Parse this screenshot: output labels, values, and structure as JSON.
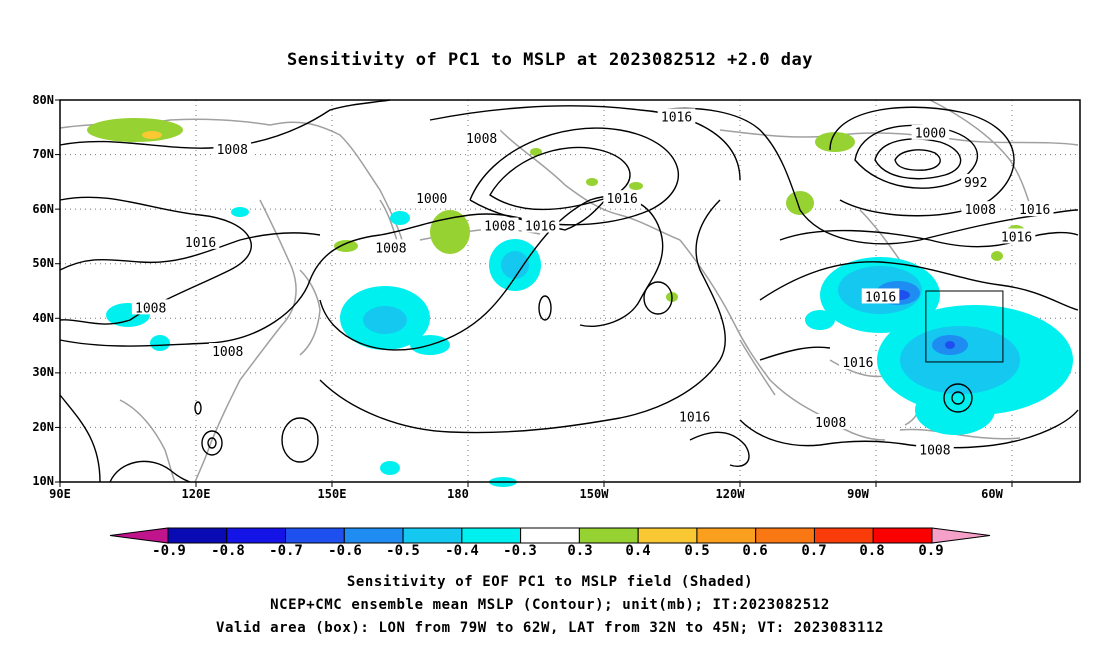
{
  "title": "Sensitivity of PC1 to MSLP at 2023082512 +2.0 day",
  "map": {
    "lat_labels": [
      "80N",
      "70N",
      "60N",
      "50N",
      "40N",
      "30N",
      "20N",
      "10N"
    ],
    "lon_labels": [
      "90E",
      "120E",
      "150E",
      "180",
      "150W",
      "120W",
      "90W",
      "60W"
    ],
    "lat_range": [
      10,
      80
    ],
    "lon_range": [
      90,
      315
    ],
    "grid": true,
    "contour_labels": [
      {
        "text": "1016",
        "lon": 226,
        "lat": 77
      },
      {
        "text": "1008",
        "lon": 183,
        "lat": 73
      },
      {
        "text": "1008",
        "lon": 128,
        "lat": 71
      },
      {
        "text": "1000",
        "lon": 282,
        "lat": 74
      },
      {
        "text": "992",
        "lon": 292,
        "lat": 65
      },
      {
        "text": "1000",
        "lon": 172,
        "lat": 62
      },
      {
        "text": "1016",
        "lon": 214,
        "lat": 62
      },
      {
        "text": "1008",
        "lon": 293,
        "lat": 60
      },
      {
        "text": "1016",
        "lon": 305,
        "lat": 60
      },
      {
        "text": "1016",
        "lon": 196,
        "lat": 57
      },
      {
        "text": "1008",
        "lon": 187,
        "lat": 57
      },
      {
        "text": "1016",
        "lon": 301,
        "lat": 55
      },
      {
        "text": "1016",
        "lon": 121,
        "lat": 54
      },
      {
        "text": "1008",
        "lon": 163,
        "lat": 53
      },
      {
        "text": "1008",
        "lon": 110,
        "lat": 42
      },
      {
        "text": "1016",
        "lon": 271,
        "lat": 44
      },
      {
        "text": "1008",
        "lon": 127,
        "lat": 34
      },
      {
        "text": "1016",
        "lon": 266,
        "lat": 32
      },
      {
        "text": "1016",
        "lon": 230,
        "lat": 22
      },
      {
        "text": "1008",
        "lon": 260,
        "lat": 21
      },
      {
        "text": "1008",
        "lon": 283,
        "lat": 16
      }
    ],
    "valid_box": {
      "lon_w": 79,
      "lon_e": 62,
      "lat_s": 32,
      "lat_n": 45
    }
  },
  "colorbar": {
    "labels": [
      "-0.9",
      "-0.8",
      "-0.7",
      "-0.6",
      "-0.5",
      "-0.4",
      "-0.3",
      "0.3",
      "0.4",
      "0.5",
      "0.6",
      "0.7",
      "0.8",
      "0.9"
    ],
    "colors": [
      "#c0148c",
      "#0a0ab4",
      "#1414e6",
      "#1e50f0",
      "#1e8cf0",
      "#14c8f0",
      "#00f0f0",
      "#ffffff",
      "#96d232",
      "#fac832",
      "#faa01e",
      "#fa7814",
      "#fa3c0a",
      "#fa0000",
      "#f5a0c8"
    ]
  },
  "captions": {
    "line1": "Sensitivity of EOF PC1 to MSLP field (Shaded)",
    "line2": "NCEP+CMC ensemble mean MSLP (Contour); unit(mb); IT:2023082512",
    "line3": "Valid area (box): LON from 79W to 62W, LAT from 32N to 45N; VT: 2023083112"
  }
}
